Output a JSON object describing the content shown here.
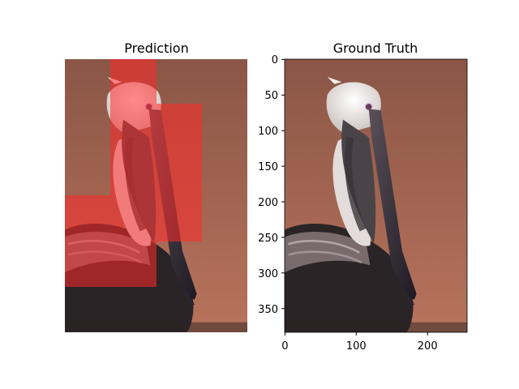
{
  "panels": [
    {
      "id": "prediction",
      "title": "Prediction",
      "overlay_color": "#ff2a2a",
      "axes_visible": false
    },
    {
      "id": "ground-truth",
      "title": "Ground Truth",
      "axes_visible": true,
      "x_ticks": [
        "0",
        "100",
        "200"
      ],
      "y_ticks": [
        "0",
        "50",
        "100",
        "150",
        "200",
        "250",
        "300",
        "350"
      ],
      "x_range": [
        0,
        256
      ],
      "y_range": [
        384,
        0
      ]
    }
  ],
  "colors": {
    "background_top": "#8e5848",
    "background_bottom": "#b06c58",
    "neck_white": "#e8e2df",
    "body_dark": "#1e1a1c",
    "bill_dark": "#3a3440"
  }
}
